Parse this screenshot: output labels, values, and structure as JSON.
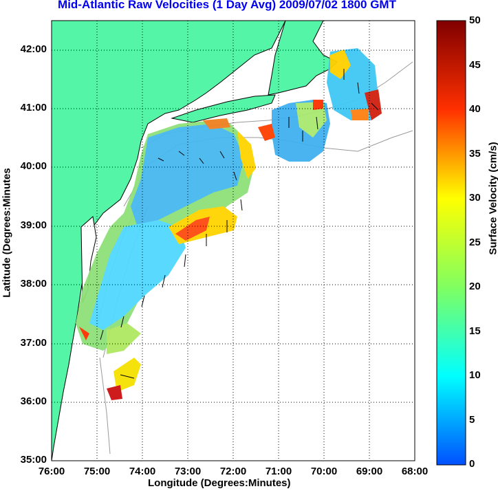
{
  "title": "Mid-Atlantic Raw Velocities (1 Day Avg) 2009/07/02 1800 GMT",
  "xlabel": "Longitude (Degrees:Minutes)",
  "ylabel": "Latitude (Degrees:Minutes",
  "colorbar_label": "Surface Velocity (cm/s)",
  "x_ticks": [
    "76:00",
    "75:00",
    "74:00",
    "73:00",
    "72:00",
    "71:00",
    "70:00",
    "69:00",
    "68:00"
  ],
  "y_ticks": [
    "42:00",
    "41:00",
    "40:00",
    "39:00",
    "38:00",
    "37:00",
    "36:00",
    "35:00"
  ],
  "colorbar_ticks": [
    "50",
    "45",
    "40",
    "35",
    "30",
    "25",
    "20",
    "15",
    "10",
    "5",
    "0"
  ],
  "colors": {
    "land": "#55f5a8",
    "ocean": "#ffffff",
    "title": "#0000ee"
  }
}
